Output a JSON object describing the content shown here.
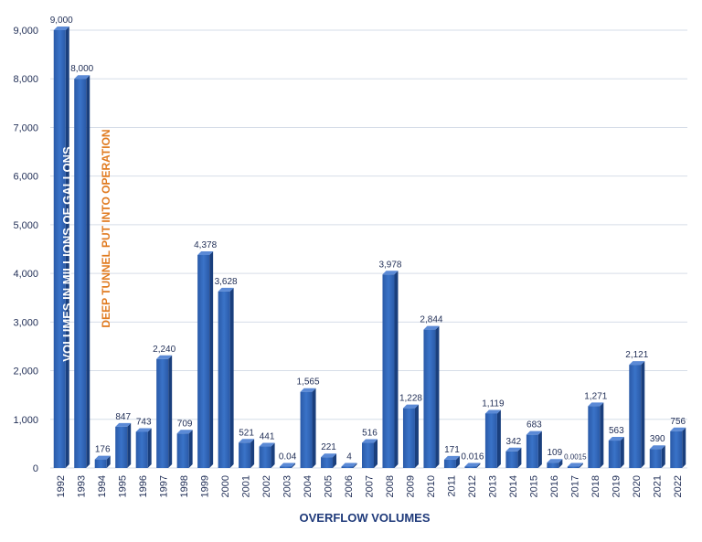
{
  "chart_data": {
    "type": "bar",
    "xlabel": "OVERFLOW VOLUMES",
    "ylabel": "VOLUMES IN MILLIONS OF GALLONS",
    "annotation": "DEEP TUNNEL PUT INTO OPERATION",
    "ylim": [
      0,
      9000
    ],
    "yticks": [
      "0",
      "1,000",
      "2,000",
      "3,000",
      "4,000",
      "5,000",
      "6,000",
      "7,000",
      "8,000",
      "9,000"
    ],
    "grid": true,
    "categories": [
      "1992",
      "1993",
      "1994",
      "1995",
      "1996",
      "1997",
      "1998",
      "1999",
      "2000",
      "2001",
      "2002",
      "2003",
      "2004",
      "2005",
      "2006",
      "2007",
      "2008",
      "2009",
      "2010",
      "2011",
      "2012",
      "2013",
      "2014",
      "2015",
      "2016",
      "2017",
      "2018",
      "2019",
      "2020",
      "2021",
      "2022"
    ],
    "values": [
      9000,
      8000,
      176,
      847,
      743,
      2240,
      709,
      4378,
      3628,
      521,
      441,
      0.04,
      1565,
      221,
      4,
      516,
      3978,
      1228,
      2844,
      171,
      0.016,
      1119,
      342,
      683,
      109,
      0.0015,
      1271,
      563,
      2121,
      390,
      756
    ],
    "labels": [
      "9,000",
      "8,000",
      "176",
      "847",
      "743",
      "2,240",
      "709",
      "4,378",
      "3,628",
      "521",
      "441",
      "0.04",
      "1,565",
      "221",
      "4",
      "516",
      "3,978",
      "1,228",
      "2,844",
      "171",
      "0.016",
      "1,119",
      "342",
      "683",
      "109",
      "0.0015",
      "1,271",
      "563",
      "2,121",
      "390",
      "756"
    ],
    "colors": {
      "bar_front": "#2e64b8",
      "bar_side": "#1a3f7d",
      "bar_top": "#5b8ad6",
      "grid": "#d6dde8",
      "annotation": "#e07a1f"
    }
  }
}
